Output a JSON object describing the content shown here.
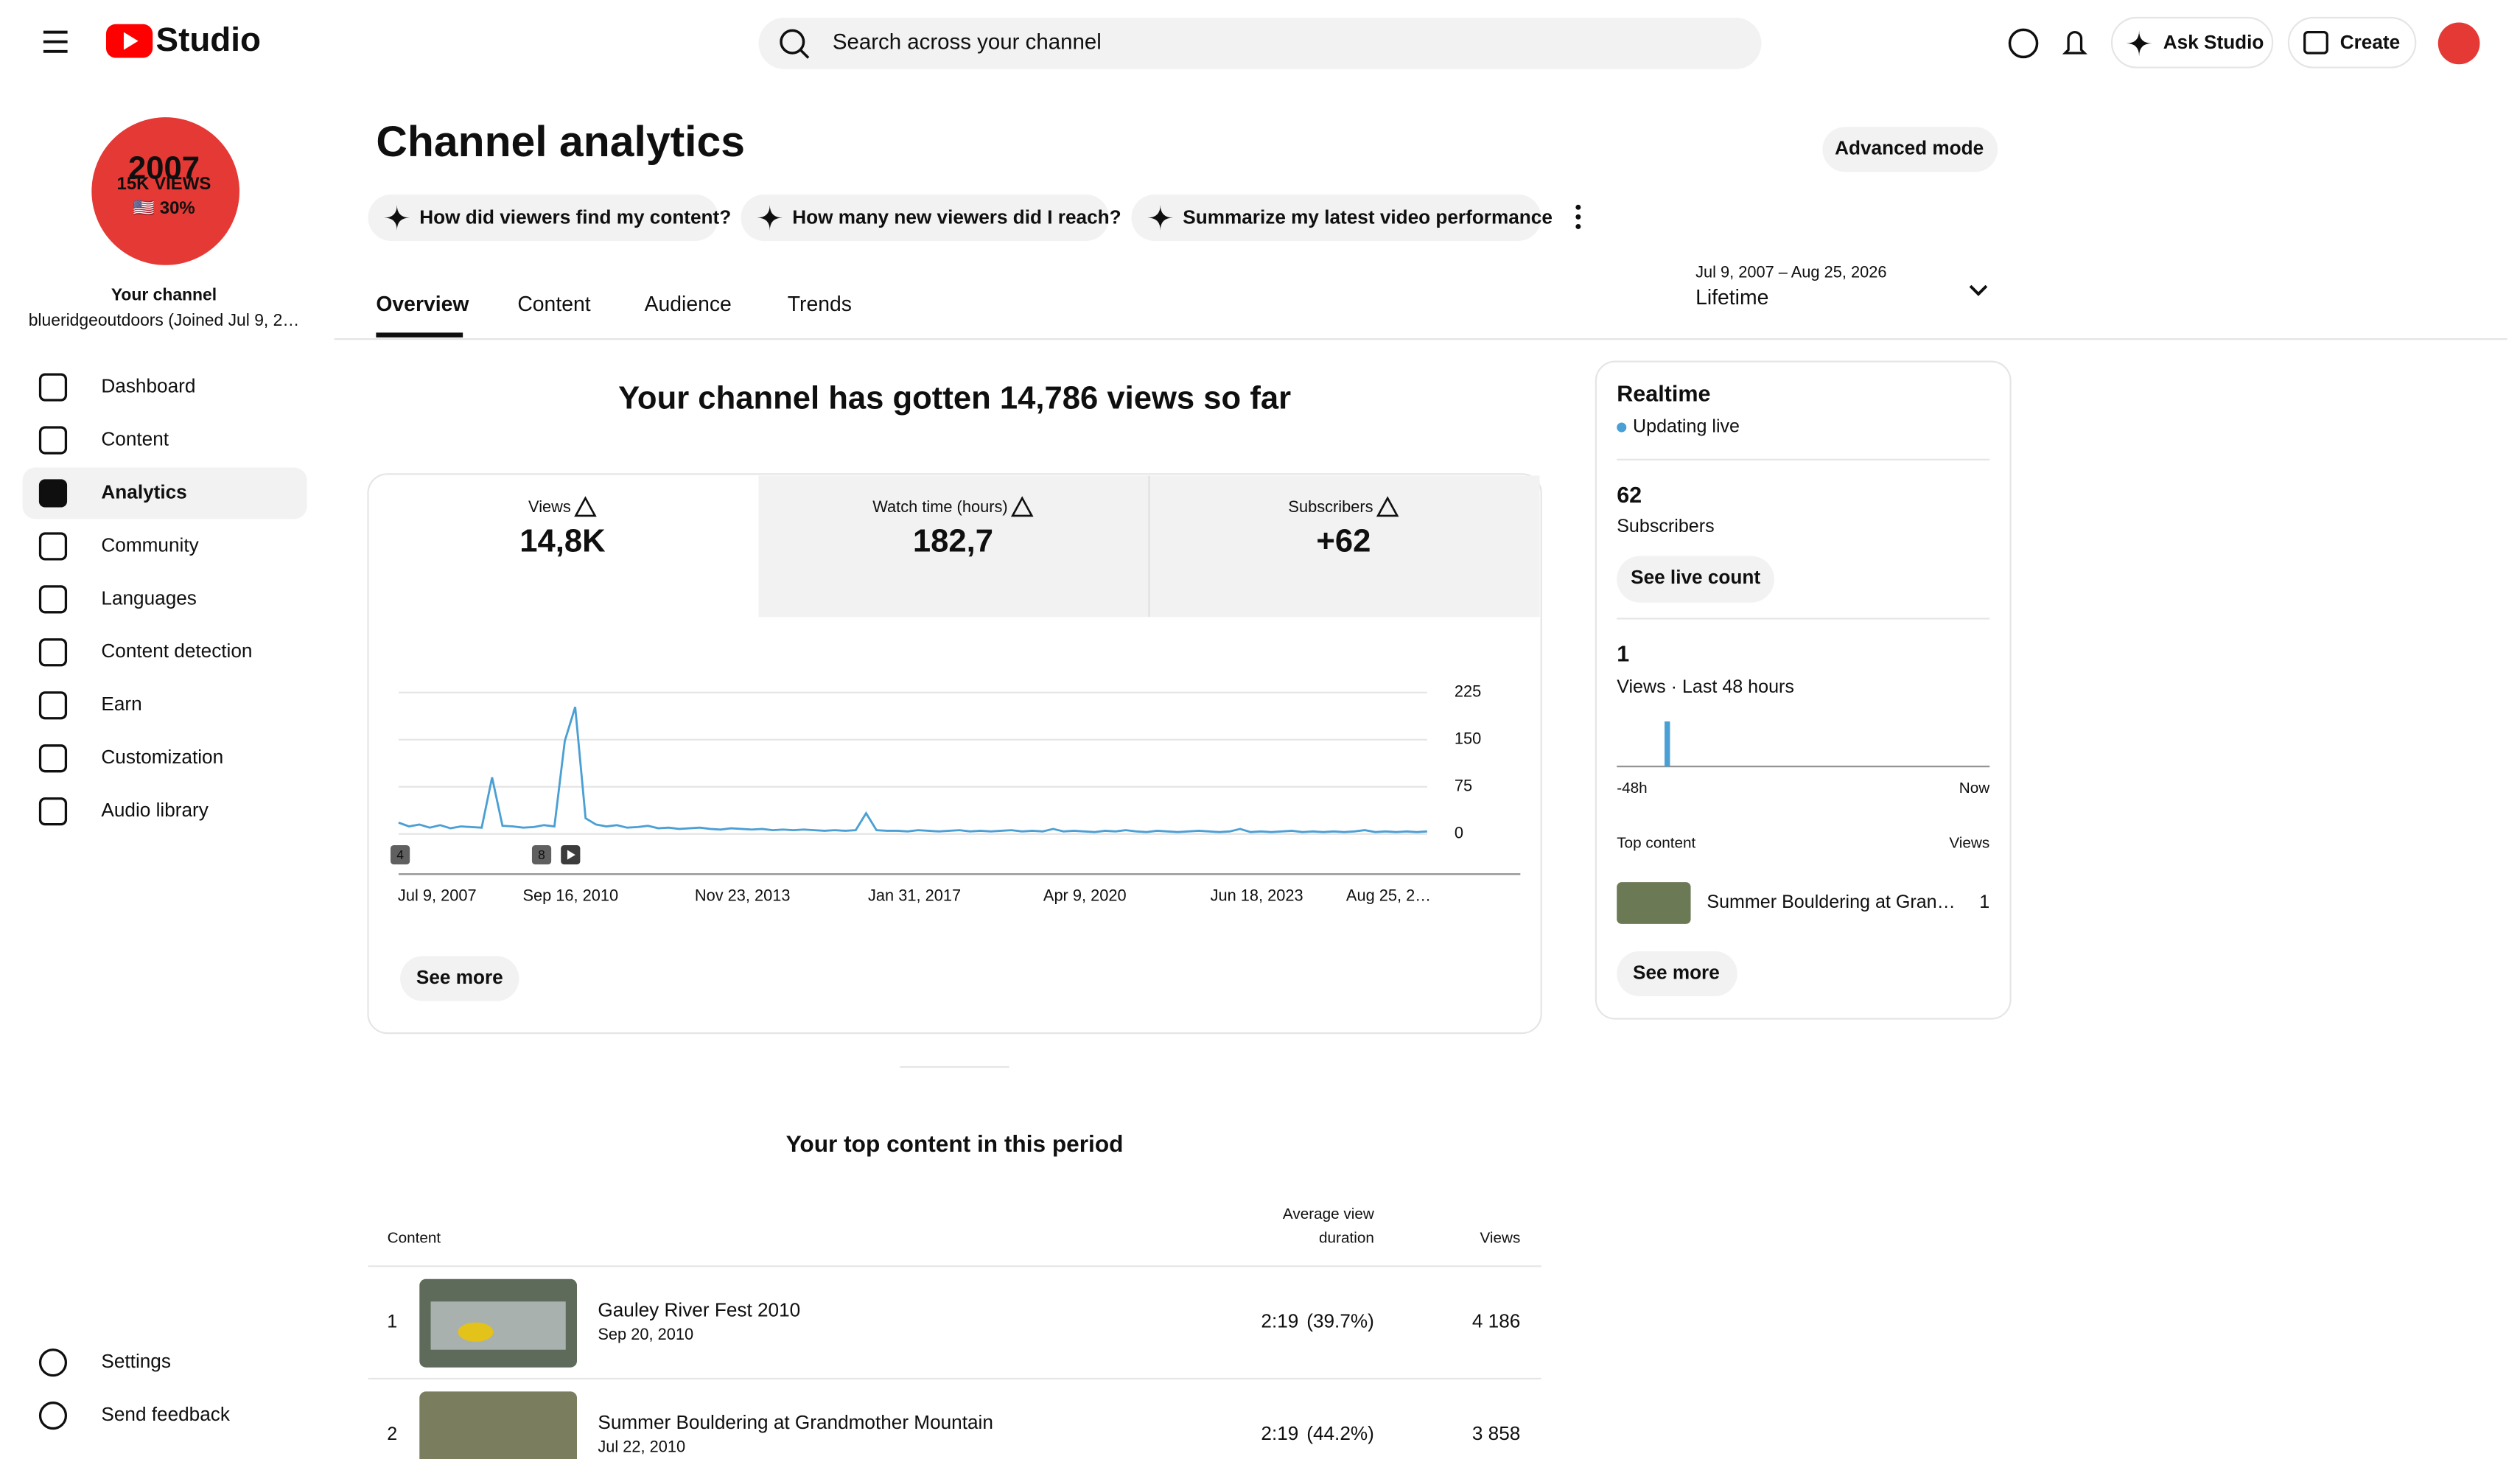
{
  "header": {
    "logo": "Studio",
    "search_placeholder": "Search across your channel",
    "ask_studio": "Ask Studio",
    "create": "Create"
  },
  "sidebar": {
    "avatar_lines": [
      "2007",
      "15K VIEWS",
      "🇺🇸 30%"
    ],
    "channel_label": "Your channel",
    "channel_name": "blueridgeoutdoors (Joined Jul 9, 2…",
    "nav": [
      "Dashboard",
      "Content",
      "Analytics",
      "Community",
      "Languages",
      "Content detection",
      "Earn",
      "Customization",
      "Audio library"
    ],
    "footer_nav": [
      "Settings",
      "Send feedback"
    ]
  },
  "page": {
    "title": "Channel analytics",
    "advanced_mode": "Advanced mode",
    "suggestions": [
      "How did viewers find my content?",
      "How many new viewers did I reach?",
      "Summarize my latest video performance"
    ],
    "tabs": [
      "Overview",
      "Content",
      "Audience",
      "Trends"
    ],
    "date_range": "Jul 9, 2007 – Aug 25, 2026",
    "period": "Lifetime"
  },
  "overview": {
    "headline": "Your channel has gotten 14,786 views so far",
    "metrics": [
      {
        "label": "Views",
        "value": "14,8K"
      },
      {
        "label": "Watch time (hours)",
        "value": "182,7"
      },
      {
        "label": "Subscribers",
        "value": "+62"
      }
    ],
    "views_chart": {
      "type": "line",
      "color": "#4a9fd4",
      "x_labels": [
        "Jul 9, 2007",
        "Sep 16, 2010",
        "Nov 23, 2013",
        "Jan 31, 2017",
        "Apr 9, 2020",
        "Jun 18, 2023",
        "Aug 25, 2…"
      ],
      "values": [
        18,
        12,
        15,
        10,
        14,
        9,
        12,
        11,
        10,
        90,
        13,
        12,
        10,
        11,
        14,
        12,
        148,
        202,
        25,
        15,
        12,
        14,
        10,
        11,
        13,
        9,
        10,
        8,
        9,
        10,
        8,
        7,
        9,
        8,
        7,
        8,
        6,
        7,
        6,
        7,
        6,
        5,
        6,
        5,
        6,
        33,
        6,
        5,
        5,
        4,
        6,
        5,
        4,
        5,
        6,
        4,
        5,
        4,
        5,
        6,
        4,
        5,
        4,
        8,
        4,
        5,
        4,
        3,
        5,
        4,
        6,
        4,
        3,
        5,
        4,
        3,
        4,
        5,
        4,
        3,
        4,
        8,
        3,
        4,
        3,
        4,
        5,
        3,
        4,
        3,
        4,
        3,
        4,
        6,
        3,
        4,
        3,
        4,
        3,
        4
      ],
      "ylim": [
        0,
        225
      ],
      "yticks": [
        0,
        75,
        150,
        225
      ],
      "grid": true,
      "markers": [
        "4",
        "8"
      ]
    },
    "see_more": "See more"
  },
  "realtime": {
    "title": "Realtime",
    "status": "Updating live",
    "subscribers": "62",
    "subscribers_label": "Subscribers",
    "see_live_count": "See live count",
    "views": "1",
    "views_label": "Views · Last 48 hours",
    "mini_chart": {
      "type": "bar",
      "color": "#4a9fd4",
      "values": [
        0,
        0,
        0,
        0,
        0,
        0,
        1,
        0,
        0,
        0,
        0,
        0,
        0,
        0,
        0,
        0,
        0,
        0,
        0,
        0,
        0,
        0,
        0,
        0,
        0,
        0,
        0,
        0,
        0,
        0,
        0,
        0,
        0,
        0,
        0,
        0,
        0,
        0,
        0,
        0,
        0,
        0,
        0,
        0,
        0,
        0,
        0,
        0
      ],
      "ylim": [
        0,
        1
      ],
      "x_start": "-48h",
      "x_end": "Now"
    },
    "top_content_label": "Top content",
    "views_header": "Views",
    "top_item": {
      "title": "Summer Bouldering at Gran…",
      "views": "1"
    },
    "see_more": "See more"
  },
  "top_content": {
    "title": "Your top content in this period",
    "columns": {
      "content": "Content",
      "avd_line1": "Average view",
      "avd_line2": "duration",
      "views": "Views"
    },
    "rows": [
      {
        "rank": "1",
        "title": "Gauley River Fest 2010",
        "date": "Sep 20, 2010",
        "duration": "2:19",
        "percent": "(39.7%)",
        "views": "4 186"
      },
      {
        "rank": "2",
        "title": "Summer Bouldering at Grandmother Mountain",
        "date": "Jul 22, 2010",
        "duration": "2:19",
        "percent": "(44.2%)",
        "views": "3 858"
      }
    ]
  }
}
